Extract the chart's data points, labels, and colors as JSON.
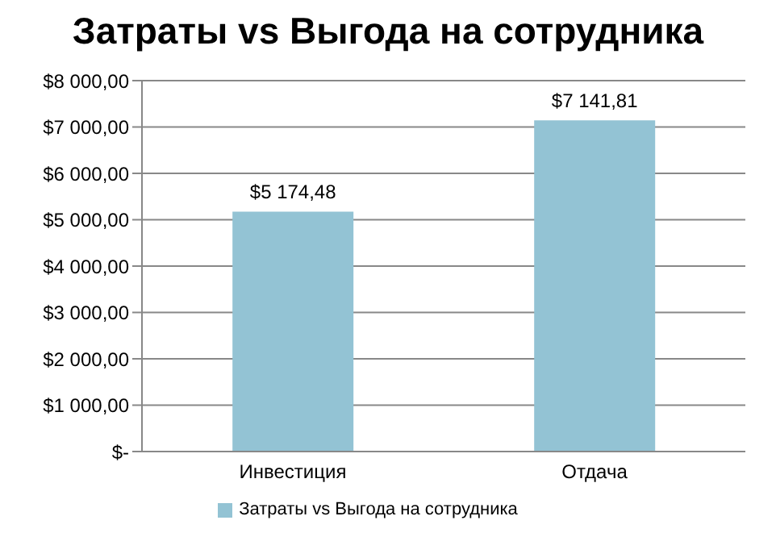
{
  "chart_data": {
    "type": "bar",
    "title": "Затраты vs Выгода на сотрудника",
    "categories": [
      "Инвестиция",
      "Отдача"
    ],
    "series": [
      {
        "name": "Затраты vs Выгода на сотрудника",
        "color": "#93c3d4",
        "values": [
          5174.48,
          7141.81
        ],
        "value_labels": [
          "$5 174,48",
          "$7 141,81"
        ]
      }
    ],
    "ylim": [
      0,
      8000
    ],
    "yticks": [
      {
        "value": 0,
        "label": "$-"
      },
      {
        "value": 1000,
        "label": "$1 000,00"
      },
      {
        "value": 2000,
        "label": "$2 000,00"
      },
      {
        "value": 3000,
        "label": "$3 000,00"
      },
      {
        "value": 4000,
        "label": "$4 000,00"
      },
      {
        "value": 5000,
        "label": "$5 000,00"
      },
      {
        "value": 6000,
        "label": "$6 000,00"
      },
      {
        "value": 7000,
        "label": "$7 000,00"
      },
      {
        "value": 8000,
        "label": "$8 000,00"
      }
    ],
    "grid": "y",
    "legend": "bottom"
  }
}
